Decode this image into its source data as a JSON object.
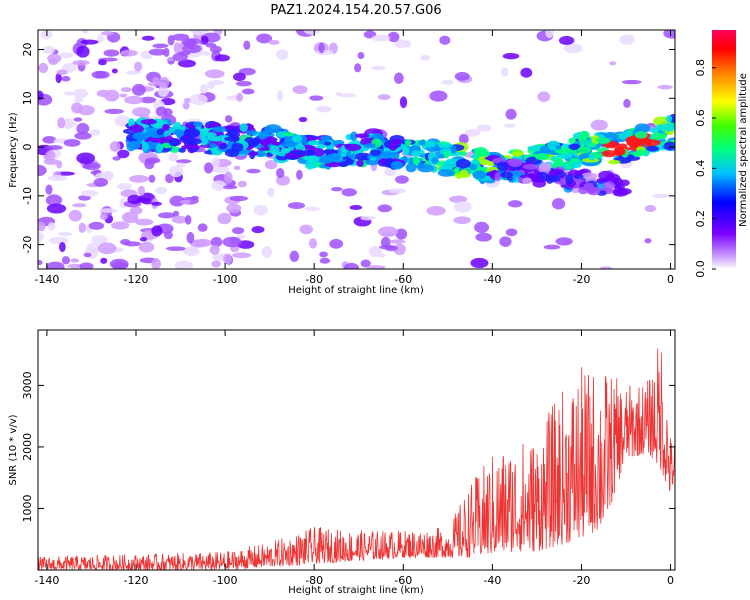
{
  "title": "PAZ1.2024.154.20.57.G06",
  "chart_data": [
    {
      "type": "heatmap",
      "xlabel": "Height of straight line (km)",
      "ylabel": "Frequency (Hz)",
      "xlim": [
        -142,
        1
      ],
      "ylim": [
        -25,
        24
      ],
      "x_ticks": [
        -140,
        -120,
        -100,
        -80,
        -60,
        -40,
        -20,
        0
      ],
      "y_ticks": [
        -20,
        -10,
        0,
        10,
        20
      ],
      "colorbar": {
        "label": "Normalized spectral amplitude",
        "range": [
          0,
          0.95
        ],
        "ticks": [
          0.0,
          0.2,
          0.4,
          0.6,
          0.8
        ],
        "colormap": "rainbow"
      },
      "ridge": {
        "description_x": [
          -120,
          -110,
          -100,
          -90,
          -80,
          -70,
          -60,
          -50,
          -40,
          -30,
          -20,
          -10,
          0
        ],
        "frequency": [
          2.5,
          2.0,
          1.5,
          1.0,
          -1.0,
          -0.5,
          -1.0,
          -2.5,
          -4.0,
          -3.0,
          -0.5,
          0.0,
          3.0
        ]
      }
    },
    {
      "type": "line",
      "xlabel": "Height of straight line (km)",
      "ylabel": "SNR (10 * v/v)",
      "xlim": [
        -142,
        1
      ],
      "ylim": [
        0,
        3900
      ],
      "x_ticks": [
        -140,
        -120,
        -100,
        -80,
        -60,
        -40,
        -20,
        0
      ],
      "y_ticks": [
        1000,
        2000,
        3000
      ],
      "color": "#ee3333",
      "envelope_x": [
        -142,
        -120,
        -100,
        -90,
        -80,
        -70,
        -60,
        -50,
        -45,
        -40,
        -35,
        -30,
        -25,
        -20,
        -15,
        -10,
        -5,
        -2,
        0,
        1
      ],
      "envelope_peak": [
        220,
        260,
        300,
        450,
        700,
        650,
        650,
        700,
        1400,
        1900,
        2100,
        2200,
        2900,
        3300,
        3300,
        3000,
        3100,
        3900,
        2200,
        2100
      ],
      "envelope_base": [
        0,
        0,
        0,
        50,
        100,
        150,
        200,
        200,
        200,
        250,
        300,
        300,
        400,
        500,
        700,
        1800,
        1900,
        1600,
        1200,
        1500
      ]
    }
  ]
}
